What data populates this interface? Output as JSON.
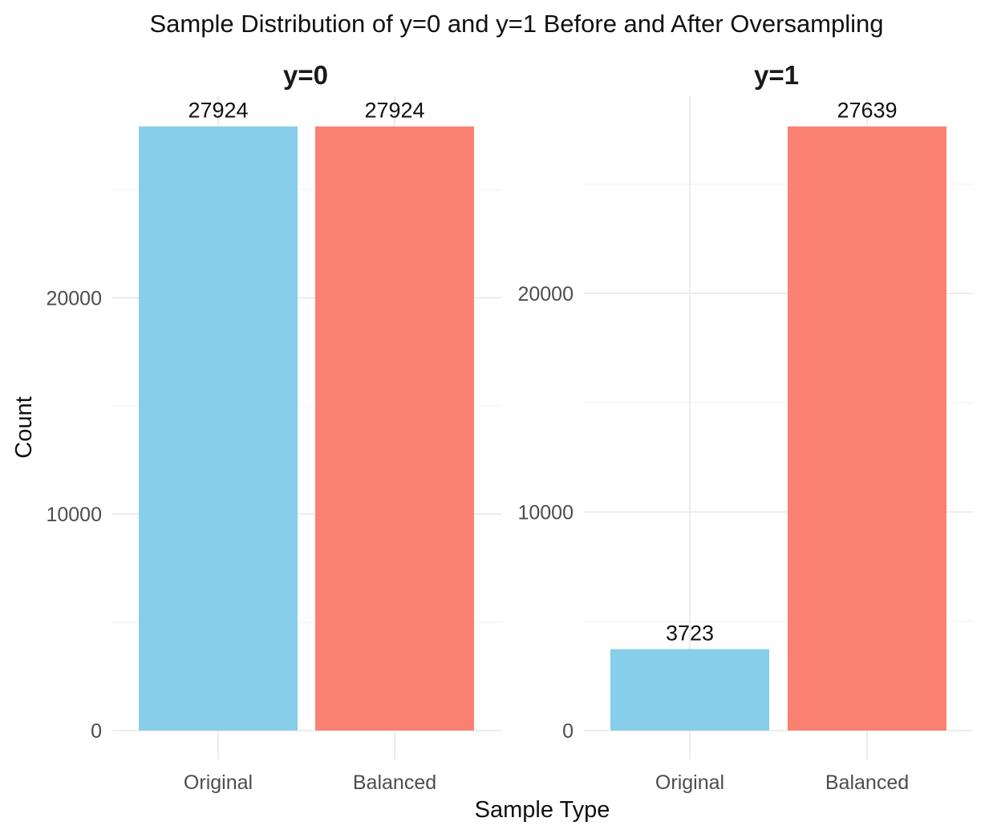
{
  "chart_data": {
    "type": "bar",
    "title": "Sample Distribution of y=0 and y=1 Before and After Oversampling",
    "xlabel": "Sample Type",
    "ylabel": "Count",
    "categories": [
      "Original",
      "Balanced"
    ],
    "colors": [
      "#87CEEB",
      "#FA8072"
    ],
    "grid": true,
    "legend": "none",
    "panels": [
      {
        "facet": "y=0",
        "values": [
          27924,
          27924
        ],
        "ylim": [
          0,
          29320
        ],
        "yticks": [
          0,
          10000,
          20000
        ],
        "ytick_labels": [
          "0",
          "10000",
          "20000"
        ]
      },
      {
        "facet": "y=1",
        "values": [
          3723,
          27639
        ],
        "ylim": [
          0,
          29020
        ],
        "yticks": [
          0,
          10000,
          20000
        ],
        "ytick_labels": [
          "0",
          "10000",
          "20000"
        ]
      }
    ]
  }
}
